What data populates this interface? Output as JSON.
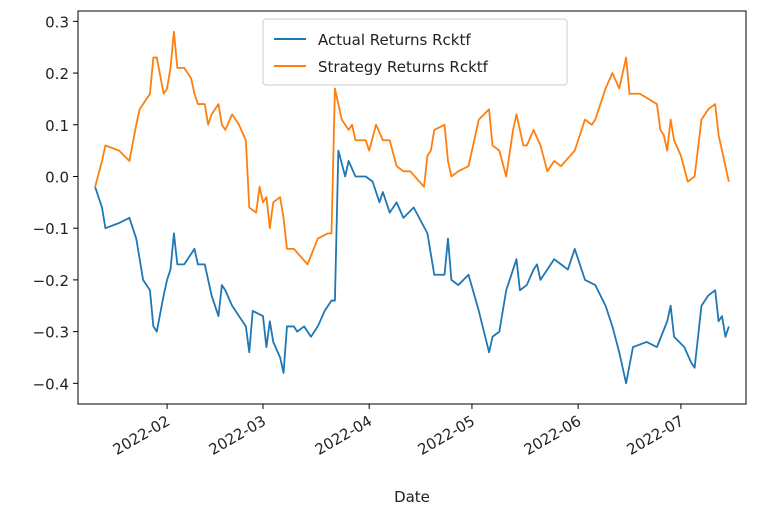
{
  "chart_data": {
    "type": "line",
    "xlabel": "Date",
    "ylabel": "",
    "title": "",
    "grid": false,
    "legend_position": "top-center",
    "ylim": [
      -0.44,
      0.32
    ],
    "xlim": [
      "2022-01-06",
      "2022-07-20"
    ],
    "yticks": [
      0.3,
      0.2,
      0.1,
      0.0,
      -0.1,
      -0.2,
      -0.3,
      -0.4
    ],
    "ytick_labels": [
      "0.3",
      "0.2",
      "0.1",
      "0.0",
      "−0.1",
      "−0.2",
      "−0.3",
      "−0.4"
    ],
    "xticks": [
      "2022-02-01",
      "2022-03-01",
      "2022-04-01",
      "2022-05-01",
      "2022-06-01",
      "2022-07-01"
    ],
    "xtick_labels": [
      "2022-02",
      "2022-03",
      "2022-04",
      "2022-05",
      "2022-06",
      "2022-07"
    ],
    "series": [
      {
        "name": "Actual Returns Rcktf",
        "color": "#1f77b4",
        "points": [
          [
            "2022-01-11",
            -0.02
          ],
          [
            "2022-01-13",
            -0.06
          ],
          [
            "2022-01-14",
            -0.1
          ],
          [
            "2022-01-18",
            -0.09
          ],
          [
            "2022-01-21",
            -0.08
          ],
          [
            "2022-01-23",
            -0.12
          ],
          [
            "2022-01-25",
            -0.2
          ],
          [
            "2022-01-27",
            -0.22
          ],
          [
            "2022-01-28",
            -0.29
          ],
          [
            "2022-01-29",
            -0.3
          ],
          [
            "2022-01-31",
            -0.23
          ],
          [
            "2022-02-01",
            -0.2
          ],
          [
            "2022-02-02",
            -0.18
          ],
          [
            "2022-02-03",
            -0.11
          ],
          [
            "2022-02-04",
            -0.17
          ],
          [
            "2022-02-06",
            -0.17
          ],
          [
            "2022-02-08",
            -0.15
          ],
          [
            "2022-02-09",
            -0.14
          ],
          [
            "2022-02-10",
            -0.17
          ],
          [
            "2022-02-12",
            -0.17
          ],
          [
            "2022-02-14",
            -0.23
          ],
          [
            "2022-02-16",
            -0.27
          ],
          [
            "2022-02-17",
            -0.21
          ],
          [
            "2022-02-18",
            -0.22
          ],
          [
            "2022-02-20",
            -0.25
          ],
          [
            "2022-02-22",
            -0.27
          ],
          [
            "2022-02-24",
            -0.29
          ],
          [
            "2022-02-25",
            -0.34
          ],
          [
            "2022-02-26",
            -0.26
          ],
          [
            "2022-03-01",
            -0.27
          ],
          [
            "2022-03-02",
            -0.33
          ],
          [
            "2022-03-03",
            -0.28
          ],
          [
            "2022-03-04",
            -0.32
          ],
          [
            "2022-03-06",
            -0.35
          ],
          [
            "2022-03-07",
            -0.38
          ],
          [
            "2022-03-08",
            -0.29
          ],
          [
            "2022-03-10",
            -0.29
          ],
          [
            "2022-03-11",
            -0.3
          ],
          [
            "2022-03-13",
            -0.29
          ],
          [
            "2022-03-15",
            -0.31
          ],
          [
            "2022-03-17",
            -0.29
          ],
          [
            "2022-03-19",
            -0.26
          ],
          [
            "2022-03-21",
            -0.24
          ],
          [
            "2022-03-22",
            -0.24
          ],
          [
            "2022-03-23",
            0.05
          ],
          [
            "2022-03-25",
            0.0
          ],
          [
            "2022-03-26",
            0.03
          ],
          [
            "2022-03-28",
            0.0
          ],
          [
            "2022-03-31",
            0.0
          ],
          [
            "2022-04-02",
            -0.01
          ],
          [
            "2022-04-04",
            -0.05
          ],
          [
            "2022-04-05",
            -0.03
          ],
          [
            "2022-04-07",
            -0.07
          ],
          [
            "2022-04-09",
            -0.05
          ],
          [
            "2022-04-11",
            -0.08
          ],
          [
            "2022-04-14",
            -0.06
          ],
          [
            "2022-04-18",
            -0.11
          ],
          [
            "2022-04-20",
            -0.19
          ],
          [
            "2022-04-23",
            -0.19
          ],
          [
            "2022-04-24",
            -0.12
          ],
          [
            "2022-04-25",
            -0.2
          ],
          [
            "2022-04-27",
            -0.21
          ],
          [
            "2022-04-30",
            -0.19
          ],
          [
            "2022-05-03",
            -0.26
          ],
          [
            "2022-05-06",
            -0.34
          ],
          [
            "2022-05-07",
            -0.31
          ],
          [
            "2022-05-09",
            -0.3
          ],
          [
            "2022-05-11",
            -0.22
          ],
          [
            "2022-05-13",
            -0.18
          ],
          [
            "2022-05-14",
            -0.16
          ],
          [
            "2022-05-15",
            -0.22
          ],
          [
            "2022-05-17",
            -0.21
          ],
          [
            "2022-05-19",
            -0.18
          ],
          [
            "2022-05-20",
            -0.17
          ],
          [
            "2022-05-21",
            -0.2
          ],
          [
            "2022-05-23",
            -0.18
          ],
          [
            "2022-05-25",
            -0.16
          ],
          [
            "2022-05-27",
            -0.17
          ],
          [
            "2022-05-29",
            -0.18
          ],
          [
            "2022-05-31",
            -0.14
          ],
          [
            "2022-06-03",
            -0.2
          ],
          [
            "2022-06-06",
            -0.21
          ],
          [
            "2022-06-09",
            -0.25
          ],
          [
            "2022-06-11",
            -0.29
          ],
          [
            "2022-06-13",
            -0.34
          ],
          [
            "2022-06-15",
            -0.4
          ],
          [
            "2022-06-17",
            -0.33
          ],
          [
            "2022-06-21",
            -0.32
          ],
          [
            "2022-06-24",
            -0.33
          ],
          [
            "2022-06-27",
            -0.28
          ],
          [
            "2022-06-28",
            -0.25
          ],
          [
            "2022-06-29",
            -0.31
          ],
          [
            "2022-07-02",
            -0.33
          ],
          [
            "2022-07-04",
            -0.36
          ],
          [
            "2022-07-05",
            -0.37
          ],
          [
            "2022-07-07",
            -0.25
          ],
          [
            "2022-07-09",
            -0.23
          ],
          [
            "2022-07-11",
            -0.22
          ],
          [
            "2022-07-12",
            -0.28
          ],
          [
            "2022-07-13",
            -0.27
          ],
          [
            "2022-07-14",
            -0.31
          ],
          [
            "2022-07-15",
            -0.29
          ]
        ]
      },
      {
        "name": "Strategy Returns Rcktf",
        "color": "#ff7f0e",
        "points": [
          [
            "2022-01-11",
            -0.02
          ],
          [
            "2022-01-13",
            0.03
          ],
          [
            "2022-01-14",
            0.06
          ],
          [
            "2022-01-18",
            0.05
          ],
          [
            "2022-01-21",
            0.03
          ],
          [
            "2022-01-23",
            0.1
          ],
          [
            "2022-01-24",
            0.13
          ],
          [
            "2022-01-27",
            0.16
          ],
          [
            "2022-01-28",
            0.23
          ],
          [
            "2022-01-29",
            0.23
          ],
          [
            "2022-01-31",
            0.16
          ],
          [
            "2022-02-01",
            0.17
          ],
          [
            "2022-02-02",
            0.21
          ],
          [
            "2022-02-03",
            0.28
          ],
          [
            "2022-02-04",
            0.21
          ],
          [
            "2022-02-06",
            0.21
          ],
          [
            "2022-02-08",
            0.19
          ],
          [
            "2022-02-09",
            0.16
          ],
          [
            "2022-02-10",
            0.14
          ],
          [
            "2022-02-12",
            0.14
          ],
          [
            "2022-02-13",
            0.1
          ],
          [
            "2022-02-14",
            0.12
          ],
          [
            "2022-02-16",
            0.14
          ],
          [
            "2022-02-17",
            0.1
          ],
          [
            "2022-02-18",
            0.09
          ],
          [
            "2022-02-20",
            0.12
          ],
          [
            "2022-02-22",
            0.1
          ],
          [
            "2022-02-24",
            0.07
          ],
          [
            "2022-02-25",
            -0.06
          ],
          [
            "2022-02-27",
            -0.07
          ],
          [
            "2022-02-28",
            -0.02
          ],
          [
            "2022-03-01",
            -0.05
          ],
          [
            "2022-03-02",
            -0.04
          ],
          [
            "2022-03-03",
            -0.1
          ],
          [
            "2022-03-04",
            -0.05
          ],
          [
            "2022-03-06",
            -0.04
          ],
          [
            "2022-03-07",
            -0.08
          ],
          [
            "2022-03-08",
            -0.14
          ],
          [
            "2022-03-10",
            -0.14
          ],
          [
            "2022-03-14",
            -0.17
          ],
          [
            "2022-03-17",
            -0.12
          ],
          [
            "2022-03-20",
            -0.11
          ],
          [
            "2022-03-21",
            -0.11
          ],
          [
            "2022-03-22",
            0.17
          ],
          [
            "2022-03-24",
            0.11
          ],
          [
            "2022-03-26",
            0.09
          ],
          [
            "2022-03-27",
            0.1
          ],
          [
            "2022-03-28",
            0.07
          ],
          [
            "2022-03-31",
            0.07
          ],
          [
            "2022-04-01",
            0.05
          ],
          [
            "2022-04-03",
            0.1
          ],
          [
            "2022-04-05",
            0.07
          ],
          [
            "2022-04-07",
            0.07
          ],
          [
            "2022-04-09",
            0.02
          ],
          [
            "2022-04-11",
            0.01
          ],
          [
            "2022-04-13",
            0.01
          ],
          [
            "2022-04-17",
            -0.02
          ],
          [
            "2022-04-18",
            0.04
          ],
          [
            "2022-04-19",
            0.05
          ],
          [
            "2022-04-20",
            0.09
          ],
          [
            "2022-04-23",
            0.1
          ],
          [
            "2022-04-24",
            0.03
          ],
          [
            "2022-04-25",
            0.0
          ],
          [
            "2022-04-27",
            0.01
          ],
          [
            "2022-04-30",
            0.02
          ],
          [
            "2022-05-03",
            0.11
          ],
          [
            "2022-05-06",
            0.13
          ],
          [
            "2022-05-07",
            0.06
          ],
          [
            "2022-05-09",
            0.05
          ],
          [
            "2022-05-11",
            0.0
          ],
          [
            "2022-05-13",
            0.09
          ],
          [
            "2022-05-14",
            0.12
          ],
          [
            "2022-05-16",
            0.06
          ],
          [
            "2022-05-17",
            0.06
          ],
          [
            "2022-05-19",
            0.09
          ],
          [
            "2022-05-21",
            0.06
          ],
          [
            "2022-05-23",
            0.01
          ],
          [
            "2022-05-25",
            0.03
          ],
          [
            "2022-05-27",
            0.02
          ],
          [
            "2022-05-31",
            0.05
          ],
          [
            "2022-06-03",
            0.11
          ],
          [
            "2022-06-05",
            0.1
          ],
          [
            "2022-06-06",
            0.11
          ],
          [
            "2022-06-09",
            0.17
          ],
          [
            "2022-06-11",
            0.2
          ],
          [
            "2022-06-13",
            0.17
          ],
          [
            "2022-06-15",
            0.23
          ],
          [
            "2022-06-16",
            0.16
          ],
          [
            "2022-06-19",
            0.16
          ],
          [
            "2022-06-24",
            0.14
          ],
          [
            "2022-06-25",
            0.09
          ],
          [
            "2022-06-26",
            0.08
          ],
          [
            "2022-06-27",
            0.05
          ],
          [
            "2022-06-28",
            0.11
          ],
          [
            "2022-06-29",
            0.07
          ],
          [
            "2022-07-01",
            0.04
          ],
          [
            "2022-07-03",
            -0.01
          ],
          [
            "2022-07-05",
            0.0
          ],
          [
            "2022-07-07",
            0.11
          ],
          [
            "2022-07-09",
            0.13
          ],
          [
            "2022-07-11",
            0.14
          ],
          [
            "2022-07-12",
            0.08
          ],
          [
            "2022-07-14",
            0.02
          ],
          [
            "2022-07-15",
            -0.01
          ]
        ]
      }
    ]
  }
}
